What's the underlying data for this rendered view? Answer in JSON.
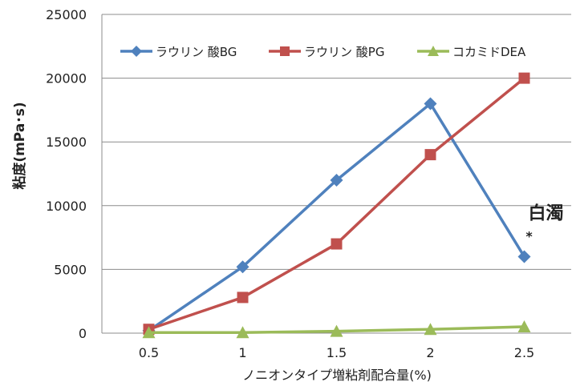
{
  "chart_data": {
    "type": "line",
    "title": "",
    "xlabel": "ノニオンタイプ増粘剤配合量(%)",
    "ylabel": "粘度(mPa･s)",
    "x": [
      0.5,
      1,
      1.5,
      2,
      2.5
    ],
    "x_tick_labels": [
      "0.5",
      "1",
      "1.5",
      "2",
      "2.5"
    ],
    "ylim": [
      0,
      25000
    ],
    "y_ticks": [
      0,
      5000,
      10000,
      15000,
      20000,
      25000
    ],
    "y_tick_labels": [
      "0",
      "5000",
      "10000",
      "15000",
      "20000",
      "25000"
    ],
    "grid": "horizontal",
    "legend_position": "top",
    "series": [
      {
        "name": "ラウリン 酸BG",
        "marker": "diamond",
        "color": "#4F81BD",
        "values": [
          200,
          5200,
          12000,
          18000,
          6000
        ]
      },
      {
        "name": "ラウリン 酸PG",
        "marker": "square",
        "color": "#C0504D",
        "values": [
          300,
          2800,
          7000,
          14000,
          20000
        ]
      },
      {
        "name": "コカミドDEA",
        "marker": "triangle",
        "color": "#9BBB59",
        "values": [
          50,
          50,
          150,
          300,
          500
        ]
      }
    ],
    "annotations": [
      {
        "text": "白濁",
        "mark": "*",
        "x": 2.5,
        "y": 6000
      }
    ]
  }
}
